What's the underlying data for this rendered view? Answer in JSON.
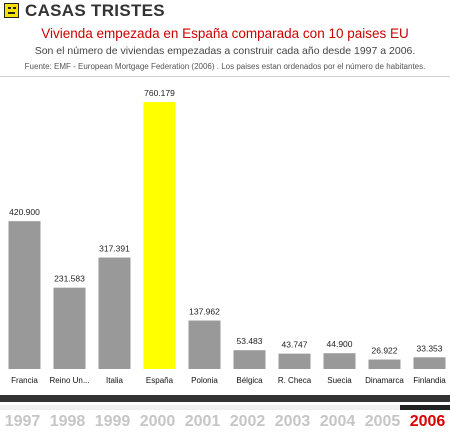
{
  "header": {
    "brand": "CASAS TRISTES"
  },
  "colors": {
    "bar": "#999999",
    "highlight": "#ffff00",
    "title": "#cc0000",
    "active_year": "#dd0000"
  },
  "chart_data": {
    "type": "bar",
    "title": "Vivienda empezada en España comparada con 10 paises EU",
    "subtitle": "Son el número de viviendas empezadas a construir cada año desde 1997 a 2006.",
    "source": "Fuente: EMF - European Mortgage Federation (2006) . Los paises estan ordenados por el número de habitantes.",
    "categories": [
      "Francia",
      "Reino Un...",
      "Italia",
      "España",
      "Polonia",
      "Bélgica",
      "R. Checa",
      "Suecia",
      "Dinamarca",
      "Finlandia"
    ],
    "values": [
      420900,
      231583,
      317391,
      760179,
      137962,
      53483,
      43747,
      44900,
      26922,
      33353
    ],
    "value_labels": [
      "420.900",
      "231.583",
      "317.391",
      "760.179",
      "137.962",
      "53.483",
      "43.747",
      "44.900",
      "26.922",
      "33.353"
    ],
    "highlight": "España",
    "ylim": [
      0,
      760179
    ],
    "xlabel": "",
    "ylabel": ""
  },
  "timeline": {
    "years": [
      "1997",
      "1998",
      "1999",
      "2000",
      "2001",
      "2002",
      "2003",
      "2004",
      "2005",
      "2006"
    ],
    "selected": "2006"
  }
}
